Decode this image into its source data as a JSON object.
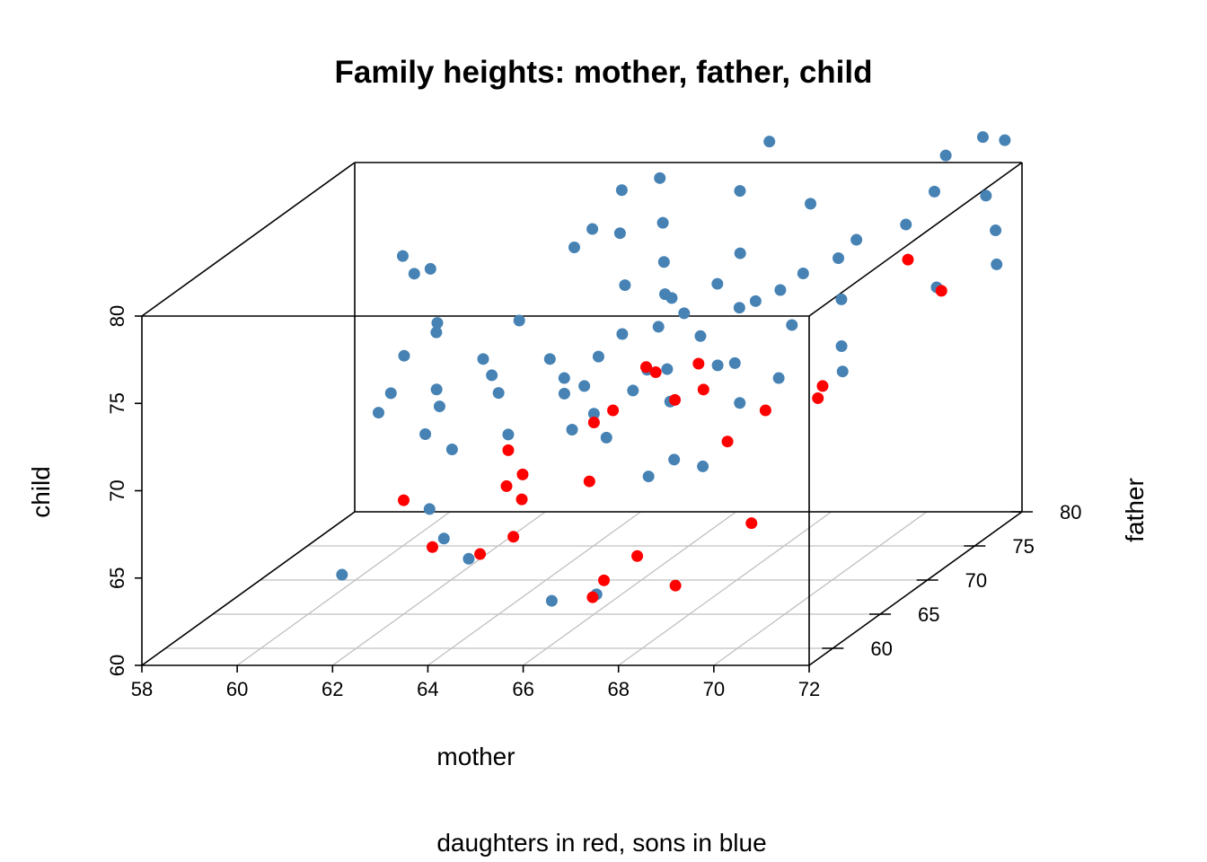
{
  "chart_data": {
    "type": "scatter",
    "title": "Family heights: mother, father, child",
    "subtitle": "daughters in red, sons in blue",
    "xlabel": "mother",
    "ylabel": "father",
    "zlabel": "child",
    "xlim": [
      58,
      72
    ],
    "ylim": [
      57.5,
      80
    ],
    "zlim": [
      60,
      80
    ],
    "x_ticks": [
      "58",
      "60",
      "62",
      "64",
      "66",
      "68",
      "70",
      "72"
    ],
    "y_ticks": [
      "60",
      "65",
      "70",
      "75",
      "80"
    ],
    "z_ticks": [
      "60",
      "65",
      "70",
      "75",
      "80"
    ],
    "grid": "floor",
    "colors": {
      "daughters": "#ff0000",
      "sons": "#4682b4"
    },
    "sons": [
      [
        62.0,
        58.5,
        64.8
      ],
      [
        63.9,
        59.7,
        66.4
      ],
      [
        64.5,
        59.3,
        65.4
      ],
      [
        66.5,
        58.0,
        63.5
      ],
      [
        67.3,
        58.7,
        63.6
      ],
      [
        63.4,
        60.7,
        67.7
      ],
      [
        67.3,
        64.2,
        68.2
      ],
      [
        68.3,
        64.9,
        68.5
      ],
      [
        67.5,
        65.9,
        68.5
      ],
      [
        66.0,
        66.3,
        69.6
      ],
      [
        62.3,
        67.3,
        71.0
      ],
      [
        61.2,
        67.7,
        71.6
      ],
      [
        61.1,
        69.6,
        73.0
      ],
      [
        61.4,
        71.6,
        74.1
      ],
      [
        63.3,
        68.5,
        71.3
      ],
      [
        64.5,
        69.4,
        71.8
      ],
      [
        65.0,
        70.5,
        72.6
      ],
      [
        66.5,
        70.2,
        72.0
      ],
      [
        67.5,
        70.5,
        72.1
      ],
      [
        69.0,
        69.4,
        71.8
      ],
      [
        70.3,
        69.6,
        72.1
      ],
      [
        65.3,
        71.5,
        73.5
      ],
      [
        64.9,
        73.8,
        75.4
      ],
      [
        66.0,
        73.2,
        74.9
      ],
      [
        66.4,
        72.5,
        74.3
      ],
      [
        67.5,
        72.8,
        74.5
      ],
      [
        68.2,
        73.6,
        75.2
      ],
      [
        68.8,
        71.8,
        73.9
      ],
      [
        65.5,
        74.9,
        76.3
      ],
      [
        67.0,
        75.4,
        76.6
      ],
      [
        63.5,
        75.5,
        76.9
      ],
      [
        63.7,
        76.4,
        77.6
      ],
      [
        64.3,
        76.3,
        77.4
      ],
      [
        65.1,
        76.8,
        77.8
      ],
      [
        69.3,
        76.1,
        77.1
      ],
      [
        69.1,
        75.2,
        76.4
      ],
      [
        70.2,
        76.8,
        77.7
      ],
      [
        68.0,
        77.8,
        78.5
      ],
      [
        66.4,
        78.4,
        79.0
      ],
      [
        64.6,
        79.0,
        79.5
      ],
      [
        60.0,
        75.0,
        76.6
      ],
      [
        60.4,
        74.2,
        75.9
      ],
      [
        60.7,
        74.4,
        76.1
      ],
      [
        64.0,
        78.0,
        79.2
      ],
      [
        66.7,
        80.0,
        81.2
      ],
      [
        70.5,
        79.5,
        80.6
      ],
      [
        71.1,
        80.4,
        81.3
      ],
      [
        71.6,
        80.2,
        81.2
      ],
      [
        71.7,
        77.7,
        79.0
      ],
      [
        72.5,
        74.8,
        76.2
      ],
      [
        71.4,
        74.0,
        75.2
      ],
      [
        70.0,
        71.0,
        73.0
      ],
      [
        63.0,
        72.2,
        74.0
      ],
      [
        62.6,
        70.4,
        72.5
      ],
      [
        61.3,
        72.0,
        73.4
      ],
      [
        61.0,
        67.4,
        70.6
      ],
      [
        62.2,
        66.3,
        69.8
      ],
      [
        62.9,
        65.6,
        69.2
      ],
      [
        65.2,
        66.7,
        69.9
      ],
      [
        66.1,
        68.6,
        71.4
      ],
      [
        67.0,
        68.0,
        71.0
      ],
      [
        68.5,
        67.8,
        71.0
      ],
      [
        64.7,
        68.4,
        71.3
      ],
      [
        66.0,
        71.8,
        73.8
      ],
      [
        67.8,
        73.0,
        74.8
      ],
      [
        69.6,
        73.0,
        74.9
      ],
      [
        70.5,
        78.3,
        79.0
      ],
      [
        72.2,
        76.2,
        77.6
      ],
      [
        65.8,
        73.5,
        75.0
      ],
      [
        66.8,
        74.0,
        75.4
      ],
      [
        68.5,
        74.5,
        75.8
      ],
      [
        62.0,
        68.5,
        71.5
      ],
      [
        63.0,
        69.3,
        72.0
      ],
      [
        64.0,
        70.4,
        72.5
      ],
      [
        65.0,
        69.0,
        71.5
      ],
      [
        66.2,
        69.6,
        72.2
      ],
      [
        67.0,
        71.2,
        73.5
      ],
      [
        65.5,
        67.5,
        70.5
      ],
      [
        63.9,
        66.5,
        69.7
      ],
      [
        68.0,
        69.8,
        72.5
      ]
    ],
    "daughters": [
      [
        62.5,
        62.5,
        67.5
      ],
      [
        63.5,
        60.5,
        65.6
      ],
      [
        64.5,
        60.5,
        65.2
      ],
      [
        65.0,
        61.5,
        65.8
      ],
      [
        64.4,
        63.8,
        67.8
      ],
      [
        64.8,
        63.4,
        67.2
      ],
      [
        66.0,
        64.5,
        67.8
      ],
      [
        67.0,
        61.0,
        63.5
      ],
      [
        67.0,
        59.8,
        63.0
      ],
      [
        67.5,
        62.0,
        64.5
      ],
      [
        68.5,
        61.0,
        63.2
      ],
      [
        69.5,
        64.0,
        65.6
      ],
      [
        64.0,
        66.0,
        69.0
      ],
      [
        64.5,
        65.0,
        68.0
      ],
      [
        65.5,
        67.5,
        70.0
      ],
      [
        65.8,
        68.0,
        70.5
      ],
      [
        67.0,
        68.5,
        70.9
      ],
      [
        67.5,
        69.0,
        71.3
      ],
      [
        68.5,
        66.5,
        69.3
      ],
      [
        69.0,
        68.0,
        70.5
      ],
      [
        70.0,
        69.0,
        71.5
      ],
      [
        70.0,
        68.5,
        71.0
      ],
      [
        70.5,
        75.5,
        76.2
      ],
      [
        71.5,
        74.0,
        75.0
      ],
      [
        66.3,
        70.0,
        71.9
      ],
      [
        67.0,
        71.0,
        72.0
      ],
      [
        66.0,
        70.5,
        72.0
      ]
    ]
  }
}
